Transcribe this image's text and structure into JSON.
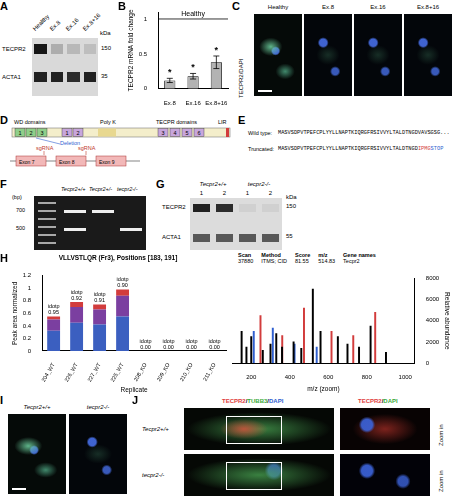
{
  "panels": {
    "A": {
      "letter": "A",
      "lanes": [
        "Healthy",
        "Ex.8",
        "Ex.16",
        "Ex.8+16"
      ],
      "rows": [
        "TECPR2",
        "ACTA1"
      ],
      "unit": "kDa",
      "markers": [
        150,
        35
      ]
    },
    "C": {
      "letter": "C",
      "stain": "TECPR2/DAPI",
      "images": [
        "Healthy",
        "Ex.8",
        "Ex.16",
        "Ex.8+16"
      ]
    },
    "D": {
      "letter": "D",
      "domains": {
        "wd": "WD domains",
        "polyk": "Poly K",
        "tecpr": "TECPR domains",
        "lir": "LIR"
      },
      "wd_boxes": [
        "1",
        "2",
        "3"
      ],
      "tecpr_boxes": [
        "1",
        "2",
        "3",
        "4",
        "5",
        "6"
      ],
      "sgrna": "sgRNA",
      "deletion": "Deletion",
      "exons": [
        "Exon 7",
        "Exon 8",
        "Exon 9"
      ]
    },
    "E": {
      "letter": "E",
      "rows": [
        {
          "label": "Wild type:",
          "sequence": "MASVSDPVTPEFCPLYYLLNAPTKIQRGFRSIVVYLTALDTNGDVAVSGSG..."
        },
        {
          "label": "Truncated:",
          "sequence": "MASVSDPVTPEFCPLYYLLNAPTKIQRGFRSIVVYLTALDTNGD",
          "mutant": "IPMG",
          "stop": "STOP"
        }
      ]
    },
    "F": {
      "letter": "F",
      "unit": "(bp)",
      "markers": [
        700,
        500
      ],
      "lanes": [
        "Tecpr2+/+",
        "Tecpr2+/-",
        "tecpr2-/-"
      ]
    },
    "G": {
      "letter": "G",
      "groups": [
        "Tecpr2+/+",
        "tecpr2-/-"
      ],
      "lanes": [
        "1",
        "2",
        "1",
        "2"
      ],
      "rows": [
        "TECPR2",
        "ACTA1"
      ],
      "unit": "kDa",
      "markers": [
        150,
        55
      ]
    },
    "I": {
      "letter": "I",
      "images": [
        "Tecpr2+/+",
        "tecpr2-/-"
      ]
    },
    "J": {
      "letter": "J",
      "rows": [
        "Tecpr2+/+",
        "tecpr2-/-"
      ],
      "stain_main": "TECPR2/TUBB3/DAPI",
      "stain_zoom": "TECPR2/DAPI",
      "zoom": "Zoom in"
    }
  },
  "chart_data": [
    {
      "letter": "B",
      "type": "bar",
      "categories": [
        "Ex.8",
        "Ex.16",
        "Ex.8+16"
      ],
      "values": [
        0.12,
        0.18,
        0.38
      ],
      "errors": [
        0.03,
        0.04,
        0.09
      ],
      "color": "#b3b3b3",
      "y_label": "TECPR2 mRNA fold change",
      "ylim": [
        0,
        1.1
      ],
      "yticks": [
        0,
        0.5,
        1
      ],
      "reference_line": {
        "value": 1,
        "label": "Healthy"
      },
      "annotations": [
        "*",
        "*",
        "*"
      ],
      "grid": false
    },
    {
      "letter": "H",
      "type": "bar",
      "stacked": true,
      "title": "VLLVSTLQR (Fr3), Positions [183, 191]",
      "x_label": "Replicate",
      "y_label": "Peak area normalized",
      "categories": [
        "204_WT",
        "226_WT",
        "227_WT",
        "225_WT",
        "208_KO",
        "209_KO",
        "210_KO",
        "211_KO"
      ],
      "series": [
        {
          "color": "#3b5fc0",
          "values": [
            0.32,
            0.45,
            0.42,
            0.55,
            0,
            0,
            0,
            0
          ]
        },
        {
          "color": "#7b3fa0",
          "values": [
            0.18,
            0.25,
            0.24,
            0.33,
            0,
            0,
            0,
            0
          ]
        },
        {
          "color": "#d23c3c",
          "values": [
            0.05,
            0.08,
            0.08,
            0.1,
            0,
            0,
            0,
            0
          ]
        }
      ],
      "annotations": [
        [
          "idotp",
          "0.95"
        ],
        [
          "idotp",
          "0.92"
        ],
        [
          "idotp",
          "0.91"
        ],
        [
          "idotp",
          "0.90"
        ],
        [
          "idotp",
          "0.00"
        ],
        [
          "idotp",
          "0.00"
        ],
        [
          "idotp",
          "0.00"
        ],
        [
          "idotp",
          "0.00"
        ]
      ],
      "ylim": [
        0,
        1.2
      ],
      "yticks": [
        0,
        0.2,
        0.4,
        0.6,
        0.8,
        1,
        1.2
      ],
      "grid": false
    },
    {
      "type": "bar",
      "x_label": "m/z (zoom)",
      "y_label": "Relative abundance",
      "info": {
        "header": [
          "Scan",
          "Method",
          "Score",
          "m/z",
          "Gene names"
        ],
        "row": [
          "37880",
          "ITMS; CID",
          "81.55",
          "514.83",
          "Tecpr2"
        ]
      },
      "series": [
        {
          "color": "#000000",
          "x": [
            150,
            175,
            200,
            260,
            300,
            330,
            360,
            420,
            460,
            520,
            560,
            650,
            700,
            760,
            820,
            900
          ],
          "values": [
            3000,
            1500,
            2500,
            1200,
            1800,
            2800,
            1500,
            2000,
            1400,
            7000,
            3000,
            2500,
            1800,
            1500,
            3500,
            1000
          ]
        },
        {
          "color": "#d23c3c",
          "x": [
            248,
            361,
            474,
            617,
            730,
            844
          ],
          "values": [
            4500,
            2600,
            5200,
            3000,
            2600,
            4800
          ]
        },
        {
          "color": "#2f5fd0",
          "x": [
            213,
            312,
            425,
            540
          ],
          "values": [
            3000,
            3300,
            1800,
            1500
          ]
        }
      ],
      "xlim": [
        100,
        1050
      ],
      "xticks": [
        200,
        400,
        600,
        800,
        1000
      ],
      "ylim": [
        0,
        8000
      ],
      "yticks": [
        0,
        2000,
        4000,
        6000,
        8000
      ],
      "grid": false
    }
  ]
}
